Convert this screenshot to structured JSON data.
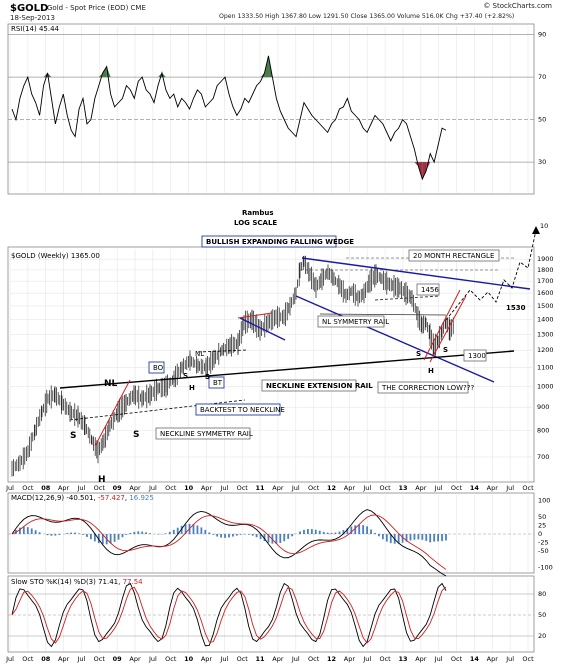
{
  "header": {
    "symbol": "$GOLD",
    "name": "Gold - Spot Price (EOD)  CME",
    "date": "18-Sep-2013",
    "ohlc": "Open 1333.50  High 1367.80  Low 1291.50  Close 1365.00  Volume 516.0K  Chg +37.40 (+2.82%)",
    "watermark": "© StockCharts.com"
  },
  "x_axis_labels": [
    "Jul",
    "Oct",
    "08",
    "Apr",
    "Jul",
    "Oct",
    "09",
    "Apr",
    "Jul",
    "Oct",
    "10",
    "Apr",
    "Jul",
    "Oct",
    "11",
    "Apr",
    "Jul",
    "Oct",
    "12",
    "Apr",
    "Jul",
    "Oct",
    "13",
    "Apr",
    "Jul",
    "Oct",
    "14",
    "Apr",
    "Jul",
    "Oct"
  ],
  "rsi_panel": {
    "label": "RSI(14) 45.44",
    "ticks": [
      "90",
      "70",
      "50",
      "30"
    ],
    "values": [
      55,
      50,
      60,
      66,
      70,
      62,
      58,
      52,
      66,
      72,
      60,
      48,
      56,
      62,
      52,
      45,
      42,
      55,
      60,
      48,
      50,
      60,
      66,
      72,
      75,
      62,
      56,
      58,
      60,
      66,
      64,
      60,
      68,
      70,
      64,
      62,
      58,
      66,
      72,
      64,
      60,
      62,
      56,
      60,
      58,
      55,
      60,
      64,
      62,
      56,
      58,
      60,
      66,
      68,
      70,
      62,
      56,
      52,
      55,
      60,
      58,
      62,
      66,
      68,
      72,
      80,
      70,
      60,
      54,
      50,
      46,
      44,
      42,
      50,
      58,
      55,
      52,
      50,
      48,
      46,
      44,
      48,
      50,
      55,
      56,
      60,
      54,
      52,
      50,
      46,
      44,
      48,
      52,
      50,
      48,
      44,
      40,
      44,
      46,
      50,
      48,
      42,
      36,
      28,
      22,
      26,
      34,
      30,
      38,
      46,
      45
    ]
  },
  "main_panel": {
    "label": "$GOLD (Weekly) 1365.00",
    "author": "Rambus",
    "scale_note": "LOG SCALE",
    "y_ticks": [
      "1900",
      "1800",
      "1700",
      "1600",
      "1500",
      "1400",
      "1300",
      "1200",
      "1100",
      "1000",
      "900",
      "800",
      "700"
    ],
    "arrow_target": "10",
    "annotations": {
      "wedge": "BULLISH EXPANDING FALLING WEDGE",
      "rectangle": "20 MONTH RECTANGLE",
      "nl_sym": "NL SYMMETRY RAIL",
      "neckline_ext": "NECKLINE EXTENSION RAIL",
      "correction": "THE CORRECTION LOW???",
      "backtest": "BACKTEST TO NECKLINE",
      "nl_sym_rail": "NECKLINE SYMMETRY RAIL",
      "v1456": "1456",
      "v1530": "1530",
      "v1300": "1300",
      "bo": "BO",
      "bt": "BT",
      "nl_big": "NL",
      "nl_small": "NL",
      "s1": "S",
      "s2": "S",
      "h1": "H",
      "s_small1": "S",
      "s_small2": "S",
      "h_small": "H",
      "s3": "S",
      "s4": "S",
      "h2": "H"
    }
  },
  "macd_panel": {
    "label": "MACD(12,26,9) -40.501, -57.427, 16.925",
    "label_prefix": "MACD(12,26,9) -40.501, ",
    "label_signal": "-57.427",
    "label_hist": "16.925",
    "ticks": [
      "100",
      "50",
      "25",
      "0",
      "-25",
      "-50",
      "-100"
    ]
  },
  "sto_panel": {
    "label": "Slow STO %K(14) %D(3) 71.41, 77.54",
    "label_prefix": "Slow STO %K(14) %D(3) 71.41, ",
    "label_d": "77.54",
    "ticks": [
      "80",
      "50",
      "20"
    ]
  },
  "colors": {
    "trendline_blue": "#1a1aa8",
    "macd_red": "#d02020",
    "hist_blue": "#4a80c0",
    "rsi_green": "#4a7a4a",
    "rsi_red": "#9a3040"
  }
}
